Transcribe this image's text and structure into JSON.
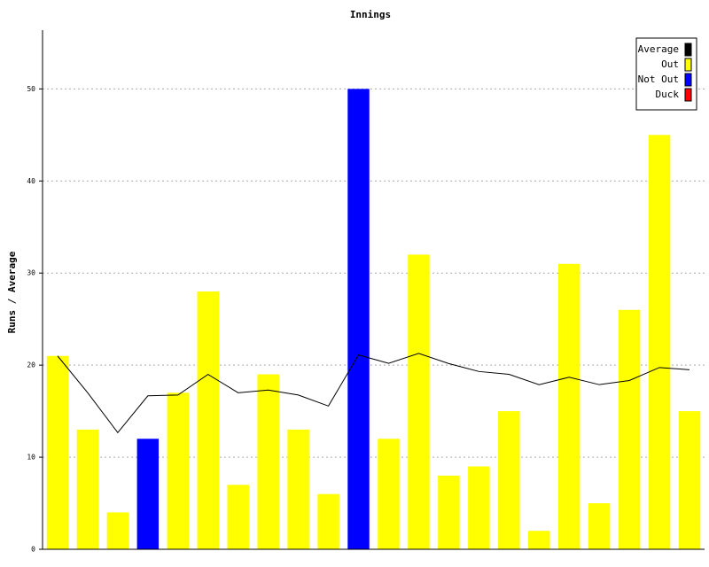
{
  "chart_data": {
    "type": "bar",
    "title": "Innings",
    "y_label": "Runs / Average",
    "categories": [
      null,
      null,
      null,
      null,
      null,
      null,
      null,
      null,
      null,
      null,
      null,
      null,
      null,
      null,
      null,
      null,
      null,
      null,
      null,
      null,
      null,
      null
    ],
    "series": [
      {
        "name": "Average",
        "color": "#000000",
        "kind": "line",
        "values": [
          21,
          17,
          12.67,
          16.67,
          16.75,
          19,
          17,
          17.29,
          16.75,
          15.56,
          21.11,
          20.2,
          21.27,
          20.17,
          19.31,
          19,
          17.87,
          18.69,
          17.88,
          18.33,
          19.74,
          19.5
        ]
      },
      {
        "name": "Out",
        "color": "#ffff00",
        "kind": "bar",
        "values": [
          21,
          13,
          4,
          null,
          17,
          28,
          7,
          19,
          13,
          6,
          null,
          12,
          32,
          8,
          9,
          15,
          2,
          31,
          5,
          26,
          45,
          15
        ]
      },
      {
        "name": "Not Out",
        "color": "#0000ff",
        "kind": "bar",
        "values": [
          null,
          null,
          null,
          12,
          null,
          null,
          null,
          null,
          null,
          null,
          50,
          null,
          null,
          null,
          null,
          null,
          null,
          null,
          null,
          null,
          null,
          null
        ]
      },
      {
        "name": "Duck",
        "color": "#ff0000",
        "kind": "bar",
        "values": [
          null,
          null,
          null,
          null,
          null,
          null,
          null,
          null,
          null,
          null,
          null,
          null,
          null,
          null,
          null,
          null,
          null,
          null,
          null,
          null,
          null,
          null
        ]
      }
    ],
    "ylim": [
      0,
      56
    ],
    "yticks": [
      0,
      10,
      20,
      30,
      40,
      50
    ],
    "grid": true,
    "legend": "top-right"
  }
}
